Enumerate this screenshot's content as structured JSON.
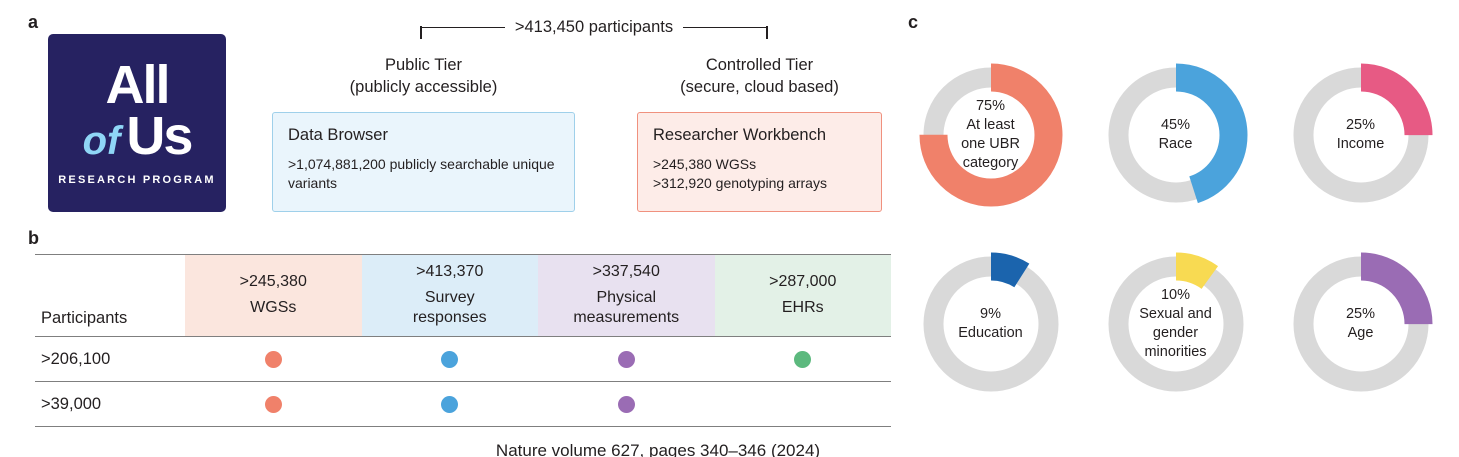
{
  "panel_a": {
    "label": "a",
    "logo": {
      "word_all": "All",
      "word_of": "of",
      "word_us": "Us",
      "subtitle": "RESEARCH PROGRAM",
      "background": "#262261"
    },
    "bracket_label": ">413,450 participants",
    "public_tier": {
      "title": "Public Tier",
      "subtitle": "(publicly accessible)",
      "box_title": "Data Browser",
      "box_text": ">1,074,881,200 publicly searchable unique variants"
    },
    "controlled_tier": {
      "title": "Controlled Tier",
      "subtitle": "(secure, cloud based)",
      "box_title": "Researcher Workbench",
      "box_line1": ">245,380 WGSs",
      "box_line2": ">312,920 genotyping arrays"
    }
  },
  "panel_b": {
    "label": "b",
    "first_col_header": "Participants",
    "columns": [
      {
        "value": ">245,380",
        "name_lines": [
          "WGSs"
        ],
        "bg": "#fbe6de",
        "dot": "#f0816a"
      },
      {
        "value": ">413,370",
        "name_lines": [
          "Survey",
          "responses"
        ],
        "bg": "#dcedf8",
        "dot": "#4ba3dc"
      },
      {
        "value": ">337,540",
        "name_lines": [
          "Physical",
          "measurements"
        ],
        "bg": "#e8e1f0",
        "dot": "#9a6cb4"
      },
      {
        "value": ">287,000",
        "name_lines": [
          "EHRs"
        ],
        "bg": "#e3f1e7",
        "dot": "#5cb97e"
      }
    ],
    "rows": [
      {
        "label": ">206,100",
        "dots": [
          true,
          true,
          true,
          true
        ]
      },
      {
        "label": ">39,000",
        "dots": [
          true,
          true,
          true,
          false
        ]
      }
    ]
  },
  "panel_c": {
    "label": "c",
    "track_color": "#d9d9d9",
    "donuts": [
      {
        "pct_label": "75%",
        "value": 75,
        "label_lines": [
          "At least",
          "one UBR",
          "category"
        ],
        "color": "#f0816a"
      },
      {
        "pct_label": "45%",
        "value": 45,
        "label_lines": [
          "Race"
        ],
        "color": "#4ba3dc"
      },
      {
        "pct_label": "25%",
        "value": 25,
        "label_lines": [
          "Income"
        ],
        "color": "#e75a84"
      },
      {
        "pct_label": "9%",
        "value": 9,
        "label_lines": [
          "Education"
        ],
        "color": "#1b64ad"
      },
      {
        "pct_label": "10%",
        "value": 10,
        "label_lines": [
          "Sexual and",
          "gender",
          "minorities"
        ],
        "color": "#f8da52"
      },
      {
        "pct_label": "25%",
        "value": 25,
        "label_lines": [
          "Age"
        ],
        "color": "#9a6cb4"
      }
    ]
  },
  "footer": "Nature volume 627, pages 340–346 (2024)",
  "chart_data": [
    {
      "type": "pie",
      "subtype": "donut-grid",
      "title": "Participant diversity percentages (panel c)",
      "series": [
        {
          "name": "At least one UBR category",
          "value_pct": 75,
          "color": "#f0816a"
        },
        {
          "name": "Race",
          "value_pct": 45,
          "color": "#4ba3dc"
        },
        {
          "name": "Income",
          "value_pct": 25,
          "color": "#e75a84"
        },
        {
          "name": "Education",
          "value_pct": 9,
          "color": "#1b64ad"
        },
        {
          "name": "Sexual and gender minorities",
          "value_pct": 10,
          "color": "#f8da52"
        },
        {
          "name": "Age",
          "value_pct": 25,
          "color": "#9a6cb4"
        }
      ],
      "track_color": "#d9d9d9",
      "legend_position": "inside-center"
    },
    {
      "type": "table",
      "title": "Data types by participant count (panel b)",
      "columns": [
        "Participants",
        ">245,380 WGSs",
        ">413,370 Survey responses",
        ">337,540 Physical measurements",
        ">287,000 EHRs"
      ],
      "rows": [
        [
          ">206,100",
          true,
          true,
          true,
          true
        ],
        [
          ">39,000",
          true,
          true,
          true,
          false
        ]
      ]
    }
  ]
}
